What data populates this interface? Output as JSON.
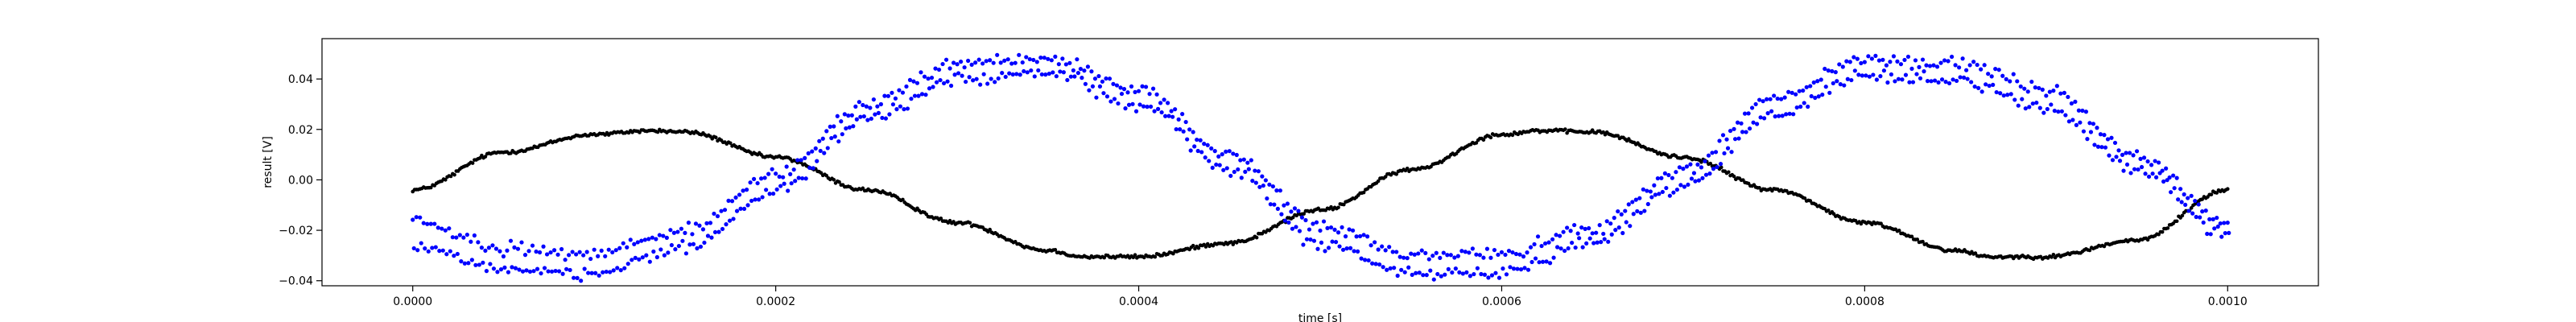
{
  "chart_data": {
    "type": "scatter",
    "xlabel": "time [s]",
    "ylabel": "result [V]",
    "xlim": [
      -5e-05,
      0.00105
    ],
    "ylim": [
      -0.042,
      0.056
    ],
    "x_ticks": [
      0.0,
      0.0002,
      0.0004,
      0.0006,
      0.0008,
      0.001
    ],
    "x_tick_labels": [
      "0.0000",
      "0.0002",
      "0.0004",
      "0.0006",
      "0.0008",
      "0.0010"
    ],
    "y_ticks": [
      -0.04,
      -0.02,
      0.0,
      0.02,
      0.04
    ],
    "y_tick_labels": [
      "−0.04",
      "−0.02",
      "0.00",
      "0.02",
      "0.04"
    ],
    "grid": false,
    "legend": "none",
    "series": [
      {
        "color": "#000000",
        "marker": "dot",
        "points_per_cycle": 500,
        "x_range": [
          0.0,
          0.001
        ],
        "period_s": 0.0005,
        "curve_knots_x": [
          0.0,
          5e-05,
          0.0001,
          0.00013,
          0.00015,
          0.0002,
          0.00025,
          0.0003,
          0.00035,
          0.00037,
          0.0004,
          0.00045,
          0.0005,
          0.00055,
          0.0006,
          0.00062,
          0.00065,
          0.0007,
          0.00075,
          0.0008,
          0.00085,
          0.00087,
          0.0009,
          0.00095,
          0.001
        ],
        "curve_knots_y": [
          -0.004,
          0.011,
          0.018,
          0.0195,
          0.019,
          0.009,
          -0.004,
          -0.017,
          -0.028,
          -0.0305,
          -0.0305,
          -0.025,
          -0.012,
          0.004,
          0.018,
          0.0195,
          0.019,
          0.009,
          -0.004,
          -0.017,
          -0.028,
          -0.0305,
          -0.0305,
          -0.024,
          -0.004
        ]
      },
      {
        "color": "#0000ff",
        "marker": "dot",
        "x_range": [
          0.0,
          0.001
        ],
        "period_s": 0.0005,
        "curve_upper_x": [
          0.0,
          5e-05,
          0.0001,
          0.00015,
          0.0002,
          0.00025,
          0.0003,
          0.00035,
          0.0004,
          0.00045,
          0.0005,
          0.00055,
          0.0006,
          0.00065,
          0.0007,
          0.00075,
          0.0008,
          0.00085,
          0.0009,
          0.00095,
          0.001
        ],
        "curve_upper_y": [
          -0.016,
          -0.027,
          -0.029,
          -0.02,
          0.002,
          0.03,
          0.046,
          0.048,
          0.036,
          0.01,
          -0.018,
          -0.03,
          -0.029,
          -0.019,
          0.004,
          0.032,
          0.048,
          0.046,
          0.036,
          0.01,
          -0.017
        ],
        "curve_lower_x": [
          0.0,
          5e-05,
          0.0001,
          0.00015,
          0.0002,
          0.00025,
          0.0003,
          0.00035,
          0.0004,
          0.00045,
          0.0005,
          0.00055,
          0.0006,
          0.00065,
          0.0007,
          0.00075,
          0.0008,
          0.00085,
          0.0009,
          0.00095,
          0.001
        ],
        "curve_lower_y": [
          -0.026,
          -0.036,
          -0.037,
          -0.027,
          -0.004,
          0.024,
          0.04,
          0.042,
          0.03,
          0.004,
          -0.026,
          -0.037,
          -0.037,
          -0.024,
          -0.002,
          0.026,
          0.041,
          0.04,
          0.028,
          0.004,
          -0.022
        ]
      }
    ]
  }
}
